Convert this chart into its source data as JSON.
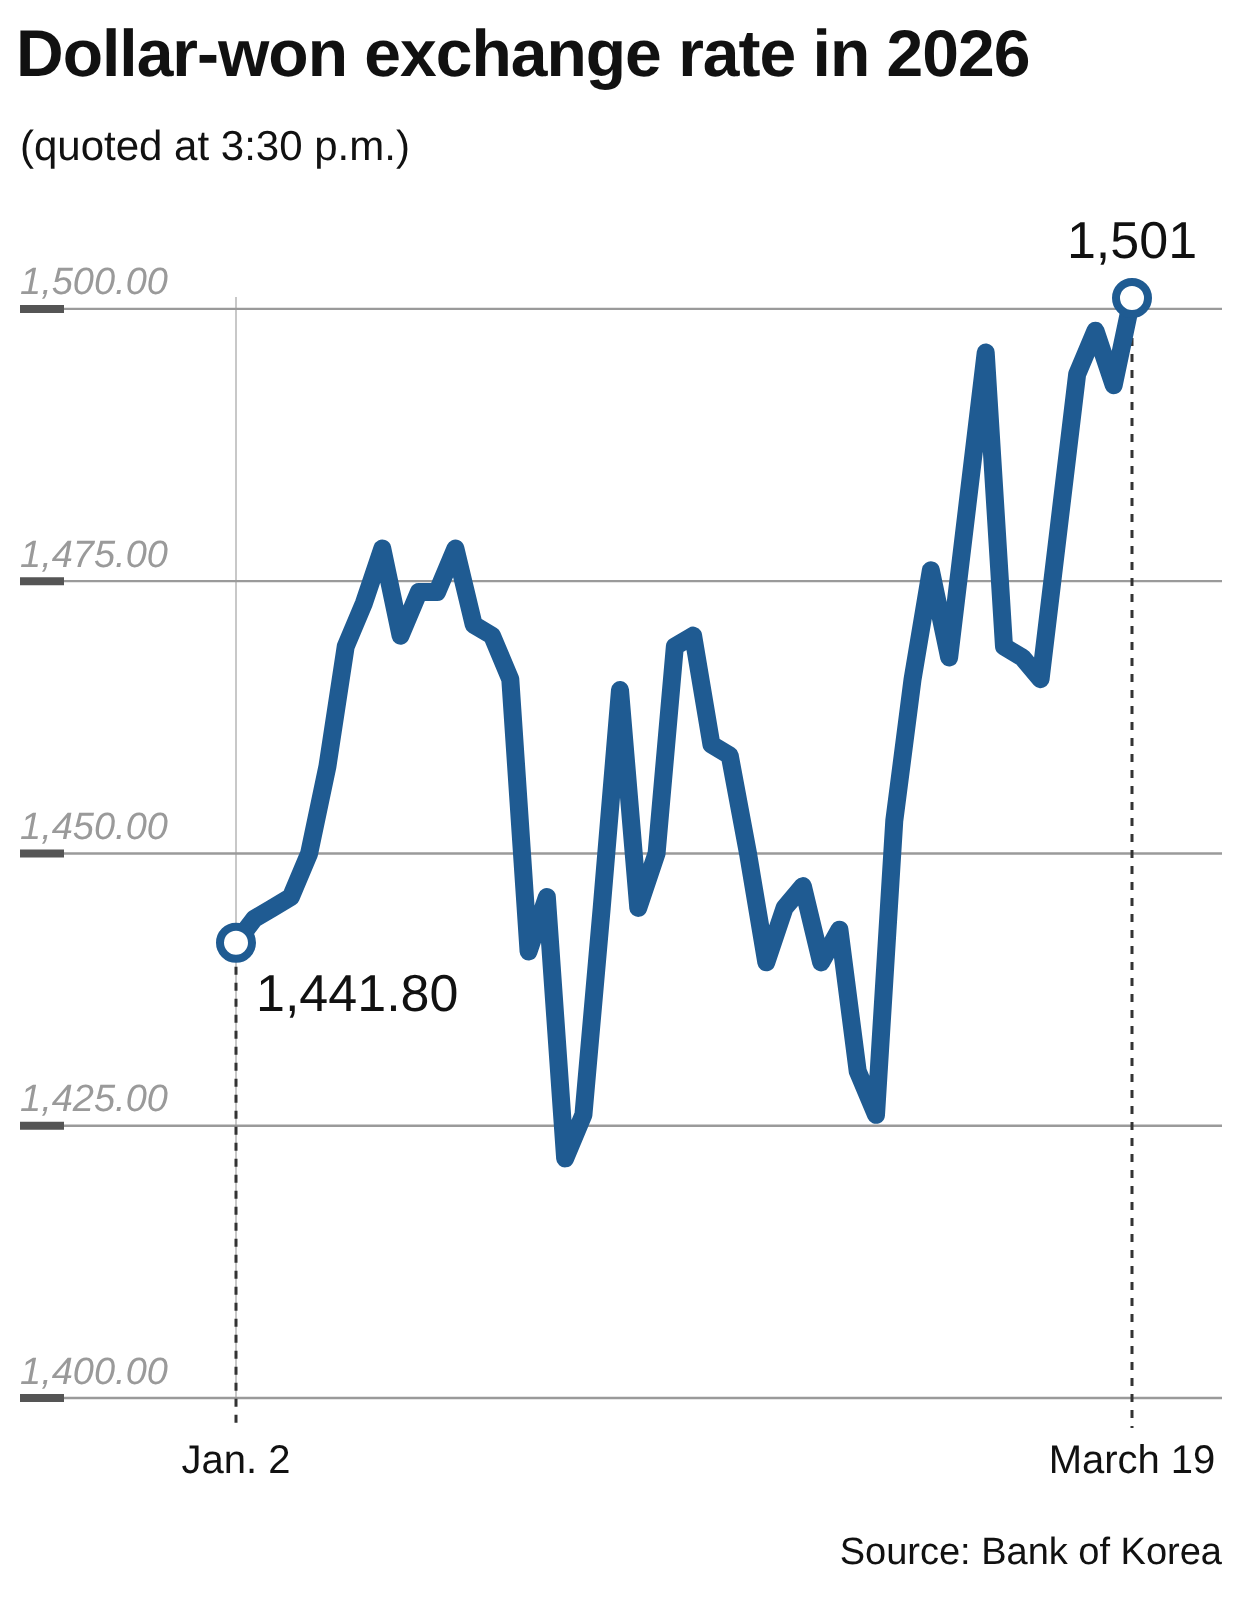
{
  "chart_data": {
    "type": "line",
    "title": "Dollar-won exchange rate in 2026",
    "subtitle": "(quoted at 3:30 p.m.)",
    "categories": [
      "Jan. 2",
      null,
      null,
      null,
      null,
      null,
      null,
      null,
      null,
      null,
      null,
      null,
      null,
      null,
      null,
      null,
      null,
      null,
      null,
      null,
      null,
      null,
      null,
      null,
      null,
      null,
      null,
      null,
      null,
      null,
      null,
      null,
      null,
      null,
      null,
      null,
      null,
      null,
      null,
      null,
      null,
      null,
      null,
      null,
      null,
      null,
      null,
      null,
      null,
      "March 19"
    ],
    "series": [
      {
        "color": "#1f5b92",
        "values": [
          1441.8,
          1444,
          1445,
          1446,
          1450,
          1458,
          1469,
          1473,
          1478,
          1470,
          1474,
          1474,
          1478,
          1471,
          1470,
          1466,
          1441,
          1446,
          1422,
          1426,
          1445,
          1465,
          1445,
          1450,
          1469,
          1470,
          1460,
          1459,
          1450,
          1440,
          1445,
          1447,
          1440,
          1443,
          1430,
          1426,
          1453,
          1466,
          1476,
          1468,
          1482,
          1496,
          1469,
          1468,
          1466,
          1480,
          1494,
          1498,
          1493,
          1501
        ],
        "value_labels": [
          "1,441.80",
          null,
          null,
          null,
          null,
          null,
          null,
          null,
          null,
          null,
          null,
          null,
          null,
          null,
          null,
          null,
          null,
          null,
          null,
          null,
          null,
          null,
          null,
          null,
          null,
          null,
          null,
          null,
          null,
          null,
          null,
          null,
          null,
          null,
          null,
          null,
          null,
          null,
          null,
          null,
          null,
          null,
          null,
          null,
          null,
          null,
          null,
          null,
          null,
          "1,501"
        ]
      }
    ],
    "yticks": [
      {
        "value": 1400,
        "label": "1,400.00"
      },
      {
        "value": 1425,
        "label": "1,425.00"
      },
      {
        "value": 1450,
        "label": "1,450.00"
      },
      {
        "value": 1475,
        "label": "1,475.00"
      },
      {
        "value": 1500,
        "label": "1,500.00"
      }
    ],
    "ylim": [
      1400,
      1501
    ],
    "grid": "y",
    "legend": false,
    "ref_lines": [
      {
        "axis": "x",
        "value": "Jan. 2",
        "line_style": "dashed",
        "color": "#333333"
      },
      {
        "axis": "x",
        "value": "March 19",
        "line_style": "dashed",
        "color": "#333333"
      }
    ],
    "annotations": [
      "Source: Bank of Korea"
    ]
  }
}
